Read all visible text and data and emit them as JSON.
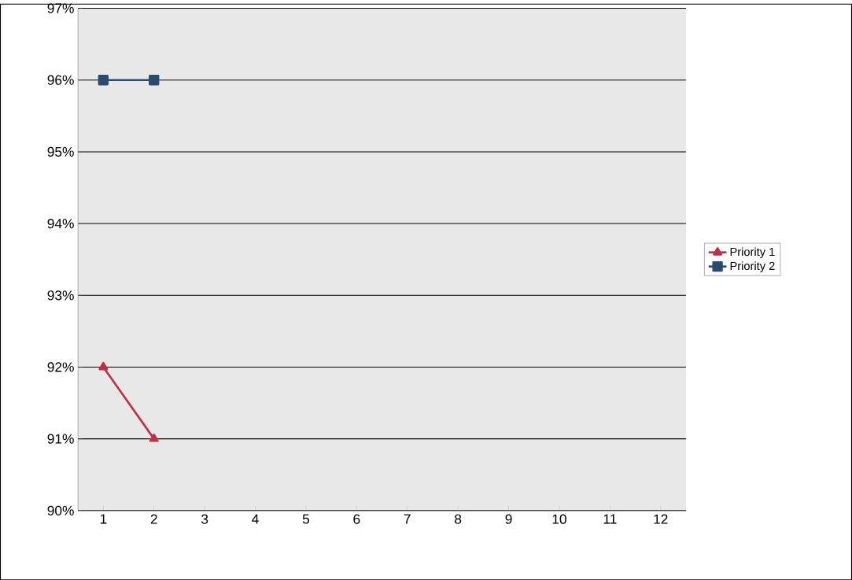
{
  "chart_data": {
    "type": "line",
    "categories": [
      "1",
      "2",
      "3",
      "4",
      "5",
      "6",
      "7",
      "8",
      "9",
      "10",
      "11",
      "12"
    ],
    "series": [
      {
        "name": "Priority 1",
        "color": "#c0304a",
        "marker": "triangle",
        "values": [
          92,
          91,
          null,
          null,
          null,
          null,
          null,
          null,
          null,
          null,
          null,
          null
        ]
      },
      {
        "name": "Priority 2",
        "color": "#2a4a70",
        "marker": "square",
        "values": [
          96,
          96,
          null,
          null,
          null,
          null,
          null,
          null,
          null,
          null,
          null,
          null
        ]
      }
    ],
    "ylim": [
      90,
      97
    ],
    "yticks": [
      {
        "value": 90,
        "label": "90%"
      },
      {
        "value": 91,
        "label": "91%"
      },
      {
        "value": 92,
        "label": "92%"
      },
      {
        "value": 93,
        "label": "93%"
      },
      {
        "value": 94,
        "label": "94%"
      },
      {
        "value": 95,
        "label": "95%"
      },
      {
        "value": 96,
        "label": "96%"
      },
      {
        "value": 97,
        "label": "97%"
      }
    ],
    "grid": "y",
    "legend": "right",
    "line_style": "solid"
  }
}
